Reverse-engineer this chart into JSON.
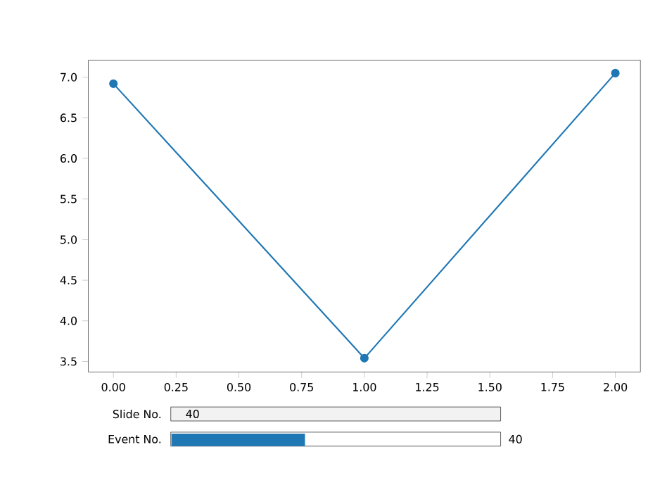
{
  "chart_data": {
    "type": "line",
    "x": [
      0,
      1,
      2
    ],
    "series": [
      {
        "color": "#1f77b4",
        "values": [
          6.92,
          3.54,
          7.05
        ]
      }
    ],
    "marker": "circle",
    "line_style": "solid",
    "xlim": [
      -0.1,
      2.1
    ],
    "ylim": [
      3.37,
      7.21
    ],
    "xticks": [
      {
        "value": 0,
        "label": "0.00"
      },
      {
        "value": 0.25,
        "label": "0.25"
      },
      {
        "value": 0.5,
        "label": "0.50"
      },
      {
        "value": 0.75,
        "label": "0.75"
      },
      {
        "value": 1,
        "label": "1.00"
      },
      {
        "value": 1.25,
        "label": "1.25"
      },
      {
        "value": 1.5,
        "label": "1.50"
      },
      {
        "value": 1.75,
        "label": "1.75"
      },
      {
        "value": 2,
        "label": "2.00"
      }
    ],
    "yticks": [
      {
        "value": 3.5,
        "label": "3.5"
      },
      {
        "value": 4,
        "label": "4.0"
      },
      {
        "value": 4.5,
        "label": "4.5"
      },
      {
        "value": 5,
        "label": "5.0"
      },
      {
        "value": 5.5,
        "label": "5.5"
      },
      {
        "value": 6,
        "label": "6.0"
      },
      {
        "value": 6.5,
        "label": "6.5"
      },
      {
        "value": 7,
        "label": "7.0"
      }
    ],
    "annotations": [
      "Slide No.",
      "40",
      "Event No.",
      "40"
    ]
  }
}
